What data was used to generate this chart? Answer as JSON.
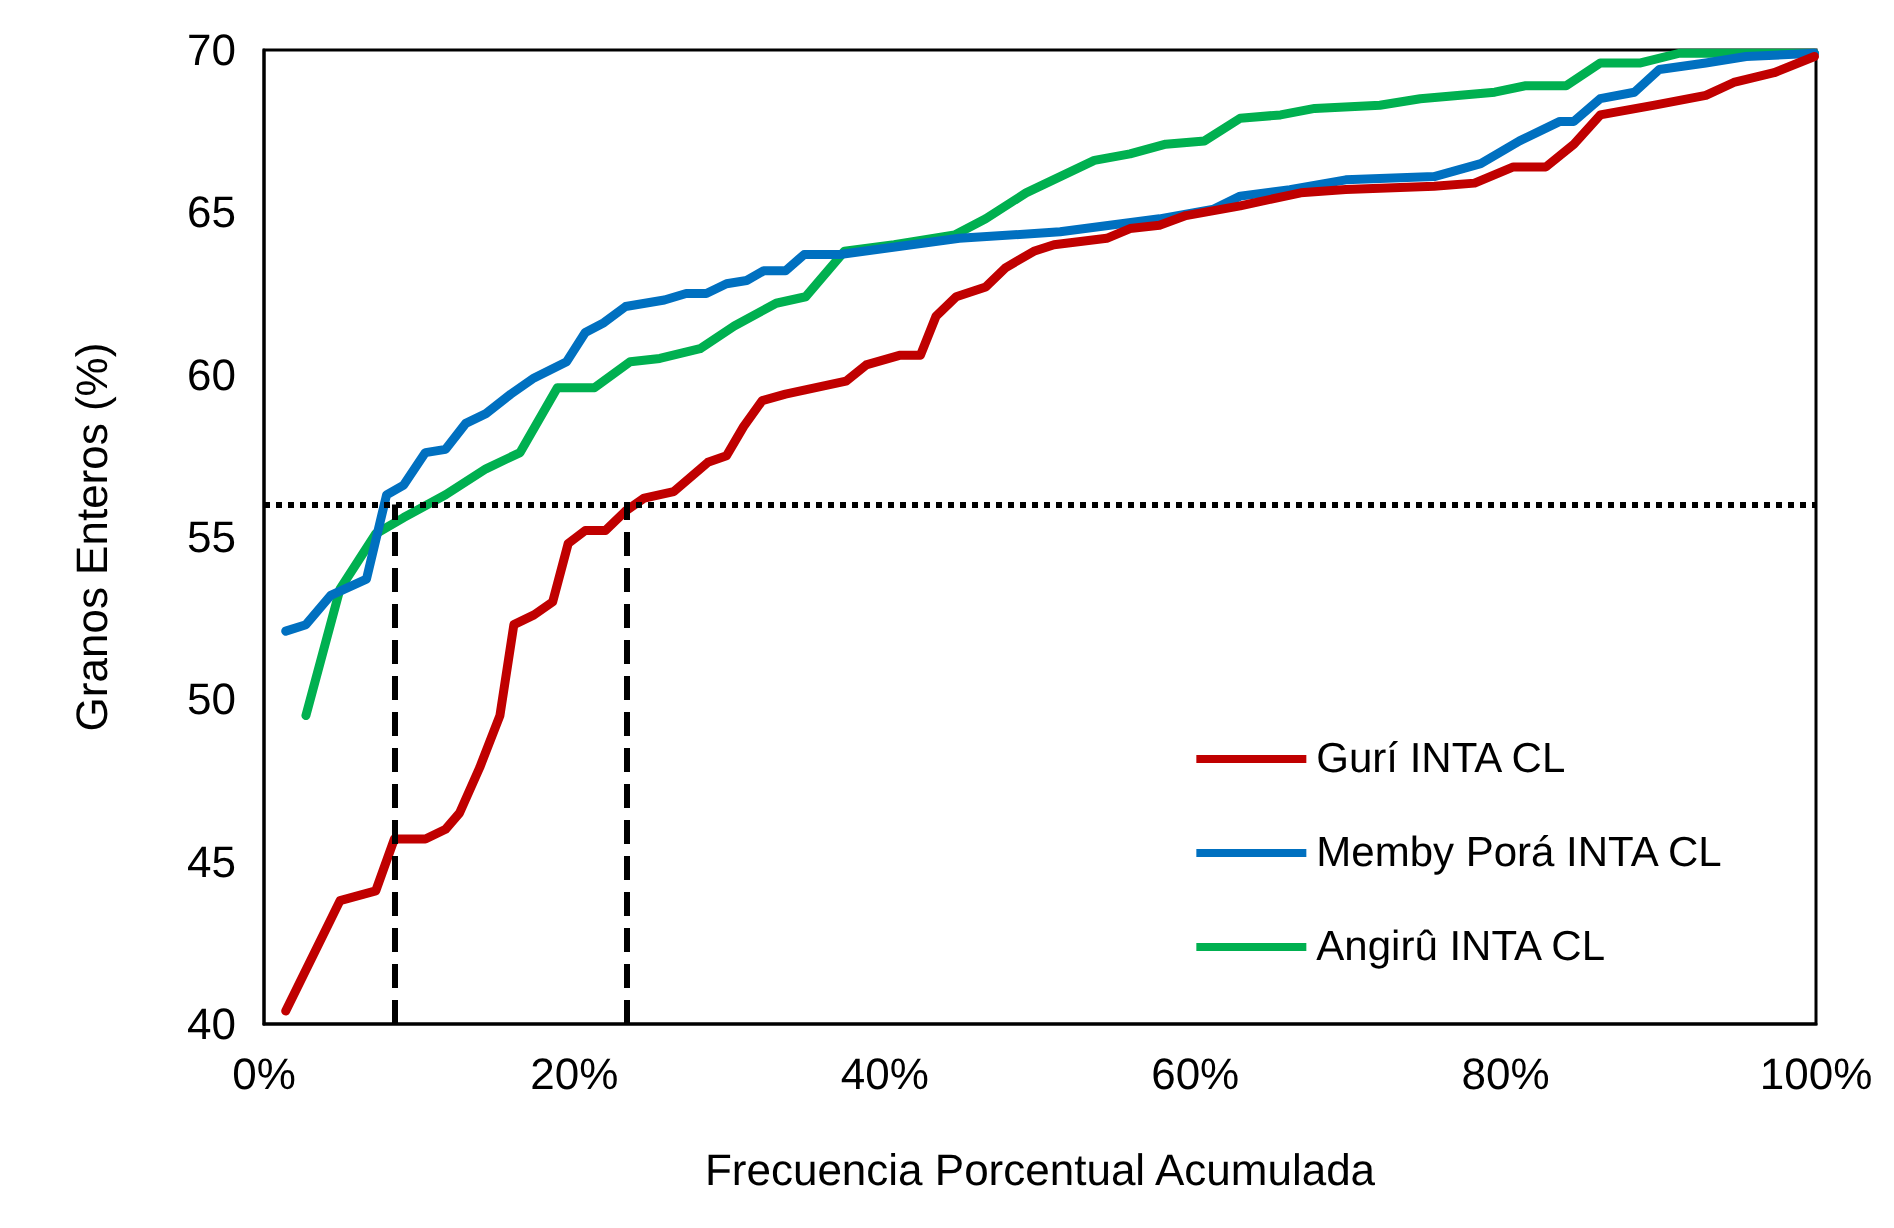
{
  "chart_data": {
    "type": "line",
    "xlabel": "Frecuencia Porcentual Acumulada",
    "ylabel": "Granos Enteros (%)",
    "xlim": [
      0,
      100
    ],
    "xticks": [
      {
        "value": 0,
        "label": "0%"
      },
      {
        "value": 20,
        "label": "20%"
      },
      {
        "value": 40,
        "label": "40%"
      },
      {
        "value": 60,
        "label": "60%"
      },
      {
        "value": 80,
        "label": "80%"
      },
      {
        "value": 100,
        "label": "100%"
      }
    ],
    "ylim": [
      40,
      70
    ],
    "yticks": [
      40,
      45,
      50,
      55,
      60,
      65,
      70
    ],
    "grid": false,
    "legend": "bottom right",
    "marker": "none",
    "line_style": "solid",
    "series": [
      {
        "name": "Gurí INTA CL",
        "color": "#c00000",
        "x": [
          1.4,
          4.9,
          7.2,
          8.4,
          10.4,
          11.7,
          12.6,
          13.9,
          15.2,
          16.1,
          17.4,
          18.6,
          19.6,
          20.7,
          22.0,
          23.3,
          24.5,
          26.4,
          28.6,
          29.8,
          30.9,
          32.1,
          33.6,
          37.5,
          38.8,
          41.0,
          42.3,
          43.3,
          44.6,
          46.5,
          47.8,
          49.6,
          50.9,
          54.3,
          55.8,
          57.7,
          59.4,
          62.9,
          66.8,
          69.7,
          75.4,
          78.0,
          80.5,
          82.6,
          84.4,
          86.1,
          89.6,
          92.9,
          94.7,
          97.3,
          99.9
        ],
        "values": [
          40.4,
          43.8,
          44.1,
          45.7,
          45.7,
          46.0,
          46.5,
          47.9,
          49.5,
          52.3,
          52.6,
          53.0,
          54.8,
          55.2,
          55.2,
          55.8,
          56.2,
          56.4,
          57.3,
          57.5,
          58.4,
          59.2,
          59.4,
          59.8,
          60.3,
          60.6,
          60.6,
          61.8,
          62.4,
          62.7,
          63.3,
          63.8,
          64.0,
          64.2,
          64.5,
          64.6,
          64.9,
          65.2,
          65.6,
          65.7,
          65.8,
          65.9,
          66.4,
          66.4,
          67.1,
          68.0,
          68.3,
          68.6,
          69.0,
          69.3,
          69.8
        ]
      },
      {
        "name": "Memby Porá INTA CL",
        "color": "#0070c0",
        "x": [
          1.4,
          2.7,
          4.3,
          6.6,
          7.9,
          9.0,
          10.4,
          11.7,
          13.0,
          14.3,
          15.9,
          17.4,
          19.5,
          20.7,
          21.9,
          23.3,
          25.8,
          27.2,
          28.5,
          29.8,
          31.1,
          32.2,
          33.6,
          34.8,
          37.1,
          44.8,
          51.3,
          57.7,
          61.2,
          62.9,
          66.1,
          69.7,
          75.4,
          78.4,
          80.9,
          83.5,
          84.4,
          86.1,
          88.3,
          89.9,
          92.9,
          95.5,
          99.9
        ],
        "values": [
          52.1,
          52.3,
          53.2,
          53.7,
          56.3,
          56.6,
          57.6,
          57.7,
          58.5,
          58.8,
          59.4,
          59.9,
          60.4,
          61.3,
          61.6,
          62.1,
          62.3,
          62.5,
          62.5,
          62.8,
          62.9,
          63.2,
          63.2,
          63.7,
          63.7,
          64.2,
          64.4,
          64.8,
          65.1,
          65.5,
          65.7,
          66.0,
          66.1,
          66.5,
          67.2,
          67.8,
          67.8,
          68.5,
          68.7,
          69.4,
          69.6,
          69.8,
          69.9
        ]
      },
      {
        "name": "Angirû INTA CL",
        "color": "#00b050",
        "x": [
          2.7,
          4.9,
          7.2,
          9.0,
          11.7,
          14.3,
          16.5,
          18.9,
          21.3,
          23.6,
          25.5,
          28.1,
          30.3,
          33.0,
          34.9,
          37.4,
          40.6,
          44.5,
          46.5,
          49.1,
          51.3,
          53.5,
          55.8,
          58.1,
          60.6,
          62.9,
          65.5,
          67.7,
          71.9,
          74.5,
          79.3,
          81.3,
          83.9,
          86.1,
          88.7,
          91.2,
          95.5,
          99.9
        ],
        "values": [
          49.5,
          53.4,
          55.1,
          55.6,
          56.3,
          57.1,
          57.6,
          59.6,
          59.6,
          60.4,
          60.5,
          60.8,
          61.5,
          62.2,
          62.4,
          63.8,
          64.0,
          64.3,
          64.8,
          65.6,
          66.1,
          66.6,
          66.8,
          67.1,
          67.2,
          67.9,
          68.0,
          68.2,
          68.3,
          68.5,
          68.7,
          68.9,
          68.9,
          69.6,
          69.6,
          69.9,
          69.9,
          69.9
        ]
      }
    ],
    "ref_lines": [
      {
        "axis": "y",
        "value": 56,
        "line_style": "dotted",
        "color": "#000000"
      },
      {
        "axis": "x",
        "value": 8.4,
        "line_style": "dashed",
        "color": "#000000"
      },
      {
        "axis": "x",
        "value": 23.3,
        "line_style": "dashed",
        "color": "#000000"
      }
    ]
  }
}
